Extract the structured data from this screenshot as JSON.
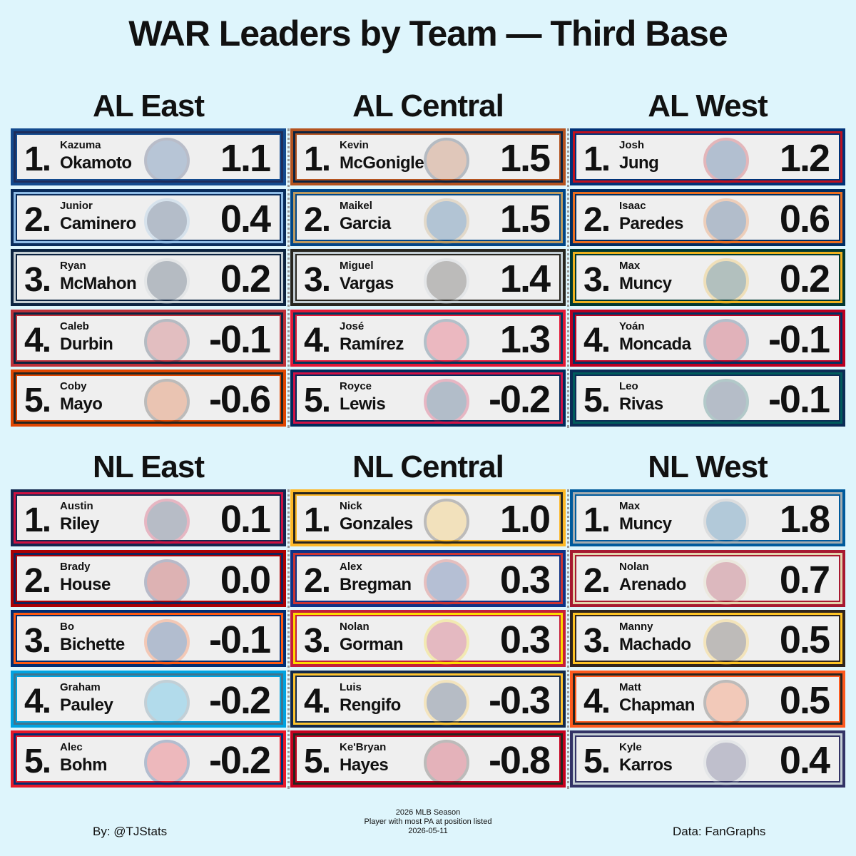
{
  "title": "WAR Leaders by Team — Third Base",
  "divisions": [
    {
      "name": "AL East",
      "players": [
        {
          "rank": "1.",
          "first": "Kazuma",
          "last": "Okamoto",
          "war": "1.1",
          "colors": [
            "#134A8E",
            "#1D2D5C"
          ]
        },
        {
          "rank": "2.",
          "first": "Junior",
          "last": "Caminero",
          "war": "0.4",
          "colors": [
            "#092C5C",
            "#8FBCE6"
          ]
        },
        {
          "rank": "3.",
          "first": "Ryan",
          "last": "McMahon",
          "war": "0.2",
          "colors": [
            "#0C2340",
            "#C4CED3"
          ]
        },
        {
          "rank": "4.",
          "first": "Caleb",
          "last": "Durbin",
          "war": "-0.1",
          "colors": [
            "#BD3039",
            "#0C2340"
          ]
        },
        {
          "rank": "5.",
          "first": "Coby",
          "last": "Mayo",
          "war": "-0.6",
          "colors": [
            "#DF4601",
            "#27251F"
          ]
        }
      ]
    },
    {
      "name": "AL Central",
      "players": [
        {
          "rank": "1.",
          "first": "Kevin",
          "last": "McGonigle",
          "war": "1.5",
          "colors": [
            "#B4531F",
            "#0C2340"
          ]
        },
        {
          "rank": "2.",
          "first": "Maikel",
          "last": "Garcia",
          "war": "1.5",
          "colors": [
            "#004687",
            "#BD9B60"
          ]
        },
        {
          "rank": "3.",
          "first": "Miguel",
          "last": "Vargas",
          "war": "1.4",
          "colors": [
            "#27251F",
            "#C4CED4"
          ]
        },
        {
          "rank": "4.",
          "first": "José",
          "last": "Ramírez",
          "war": "1.3",
          "colors": [
            "#E31937",
            "#00385D"
          ]
        },
        {
          "rank": "5.",
          "first": "Royce",
          "last": "Lewis",
          "war": "-0.2",
          "colors": [
            "#002B5C",
            "#D31145"
          ]
        }
      ]
    },
    {
      "name": "AL West",
      "players": [
        {
          "rank": "1.",
          "first": "Josh",
          "last": "Jung",
          "war": "1.2",
          "colors": [
            "#003278",
            "#C0111F"
          ]
        },
        {
          "rank": "2.",
          "first": "Isaac",
          "last": "Paredes",
          "war": "0.6",
          "colors": [
            "#002D62",
            "#EB6E1F"
          ]
        },
        {
          "rank": "3.",
          "first": "Max",
          "last": "Muncy",
          "war": "0.2",
          "colors": [
            "#003831",
            "#EFB21E"
          ]
        },
        {
          "rank": "4.",
          "first": "Yoán",
          "last": "Moncada",
          "war": "-0.1",
          "colors": [
            "#BA0021",
            "#003263"
          ]
        },
        {
          "rank": "5.",
          "first": "Leo",
          "last": "Rivas",
          "war": "-0.1",
          "colors": [
            "#0C2C56",
            "#005C5C"
          ]
        }
      ]
    },
    {
      "name": "NL East",
      "players": [
        {
          "rank": "1.",
          "first": "Austin",
          "last": "Riley",
          "war": "0.1",
          "colors": [
            "#13274F",
            "#CE1141"
          ]
        },
        {
          "rank": "2.",
          "first": "Brady",
          "last": "House",
          "war": "0.0",
          "colors": [
            "#AB0003",
            "#14225A"
          ]
        },
        {
          "rank": "3.",
          "first": "Bo",
          "last": "Bichette",
          "war": "-0.1",
          "colors": [
            "#002D72",
            "#FF5910"
          ]
        },
        {
          "rank": "4.",
          "first": "Graham",
          "last": "Pauley",
          "war": "-0.2",
          "colors": [
            "#00A3E0",
            "#41748D"
          ]
        },
        {
          "rank": "5.",
          "first": "Alec",
          "last": "Bohm",
          "war": "-0.2",
          "colors": [
            "#E81828",
            "#002D72"
          ]
        }
      ]
    },
    {
      "name": "NL Central",
      "players": [
        {
          "rank": "1.",
          "first": "Nick",
          "last": "Gonzales",
          "war": "1.0",
          "colors": [
            "#FDB827",
            "#27251F"
          ]
        },
        {
          "rank": "2.",
          "first": "Alex",
          "last": "Bregman",
          "war": "0.3",
          "colors": [
            "#0E3386",
            "#CC3433"
          ]
        },
        {
          "rank": "3.",
          "first": "Nolan",
          "last": "Gorman",
          "war": "0.3",
          "colors": [
            "#C41E3A",
            "#FEDB00"
          ]
        },
        {
          "rank": "4.",
          "first": "Luis",
          "last": "Rengifo",
          "war": "-0.3",
          "colors": [
            "#12284B",
            "#FFC52F"
          ]
        },
        {
          "rank": "5.",
          "first": "Ke'Bryan",
          "last": "Hayes",
          "war": "-0.8",
          "colors": [
            "#C6011F",
            "#27251F"
          ]
        }
      ]
    },
    {
      "name": "NL West",
      "players": [
        {
          "rank": "1.",
          "first": "Max",
          "last": "Muncy",
          "war": "1.8",
          "colors": [
            "#005A9C",
            "#A5ACAF"
          ]
        },
        {
          "rank": "2.",
          "first": "Nolan",
          "last": "Arenado",
          "war": "0.7",
          "colors": [
            "#A71930",
            "#E3D4AD"
          ]
        },
        {
          "rank": "3.",
          "first": "Manny",
          "last": "Machado",
          "war": "0.5",
          "colors": [
            "#2F241D",
            "#FFC425"
          ]
        },
        {
          "rank": "4.",
          "first": "Matt",
          "last": "Chapman",
          "war": "0.5",
          "colors": [
            "#FD5A1E",
            "#27251F"
          ]
        },
        {
          "rank": "5.",
          "first": "Kyle",
          "last": "Karros",
          "war": "0.4",
          "colors": [
            "#333366",
            "#C4CED4"
          ]
        }
      ]
    }
  ],
  "footer": {
    "credit": "By: @TJStats",
    "notes": [
      "2026 MLB Season",
      "Player with most PA at position listed",
      "2026-05-11"
    ],
    "source": "Data: FanGraphs"
  }
}
